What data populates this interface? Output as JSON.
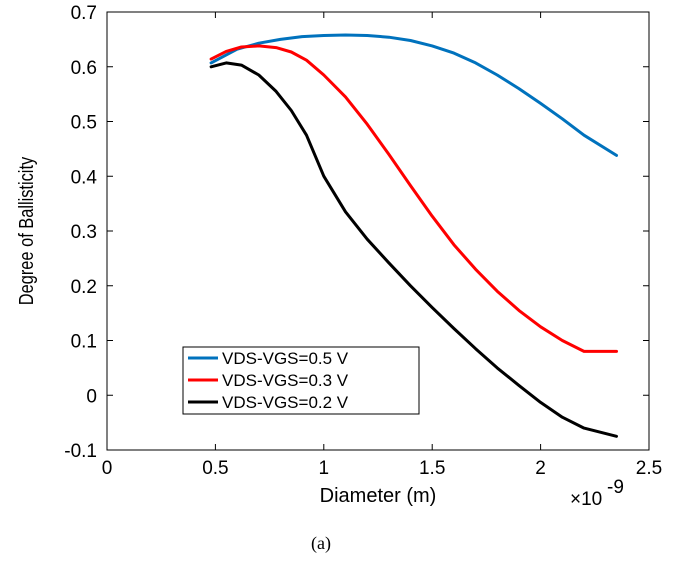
{
  "chart_data": {
    "type": "line",
    "xlabel": "Diameter (m)",
    "ylabel": "Degree of Ballisticity",
    "x_multiplier": "×10",
    "x_multiplier_exp": "-9",
    "caption": "(a)",
    "xlim": [
      0,
      2.5
    ],
    "ylim": [
      -0.1,
      0.7
    ],
    "xticks": [
      "0",
      "0.5",
      "1",
      "1.5",
      "2",
      "2.5"
    ],
    "yticks": [
      "-0.1",
      "0",
      "0.1",
      "0.2",
      "0.3",
      "0.4",
      "0.5",
      "0.6",
      "0.7"
    ],
    "legend_position": "lower-left",
    "series": [
      {
        "name": "VDS-VGS=0.5 V",
        "color": "#0072bd",
        "x": [
          0.48,
          0.6,
          0.7,
          0.8,
          0.9,
          1.0,
          1.1,
          1.2,
          1.3,
          1.4,
          1.5,
          1.6,
          1.7,
          1.8,
          1.9,
          2.0,
          2.1,
          2.2,
          2.35
        ],
        "y": [
          0.607,
          0.632,
          0.643,
          0.65,
          0.655,
          0.657,
          0.658,
          0.657,
          0.654,
          0.648,
          0.638,
          0.625,
          0.607,
          0.585,
          0.56,
          0.533,
          0.505,
          0.475,
          0.438
        ]
      },
      {
        "name": "VDS-VGS=0.3 V",
        "color": "#ff0000",
        "x": [
          0.48,
          0.55,
          0.62,
          0.7,
          0.78,
          0.85,
          0.92,
          1.0,
          1.1,
          1.2,
          1.3,
          1.4,
          1.5,
          1.6,
          1.7,
          1.8,
          1.9,
          2.0,
          2.1,
          2.2,
          2.35
        ],
        "y": [
          0.614,
          0.628,
          0.636,
          0.638,
          0.635,
          0.627,
          0.612,
          0.585,
          0.545,
          0.495,
          0.44,
          0.383,
          0.327,
          0.275,
          0.23,
          0.19,
          0.155,
          0.125,
          0.1,
          0.08,
          0.08
        ]
      },
      {
        "name": "VDS-VGS=0.2 V",
        "color": "#000000",
        "x": [
          0.48,
          0.55,
          0.62,
          0.7,
          0.78,
          0.85,
          0.92,
          1.0,
          1.1,
          1.2,
          1.3,
          1.4,
          1.5,
          1.6,
          1.7,
          1.8,
          1.9,
          2.0,
          2.1,
          2.2,
          2.35
        ],
        "y": [
          0.6,
          0.607,
          0.603,
          0.585,
          0.555,
          0.52,
          0.475,
          0.4,
          0.335,
          0.285,
          0.242,
          0.2,
          0.16,
          0.122,
          0.085,
          0.05,
          0.018,
          -0.013,
          -0.04,
          -0.06,
          -0.075
        ]
      }
    ]
  }
}
